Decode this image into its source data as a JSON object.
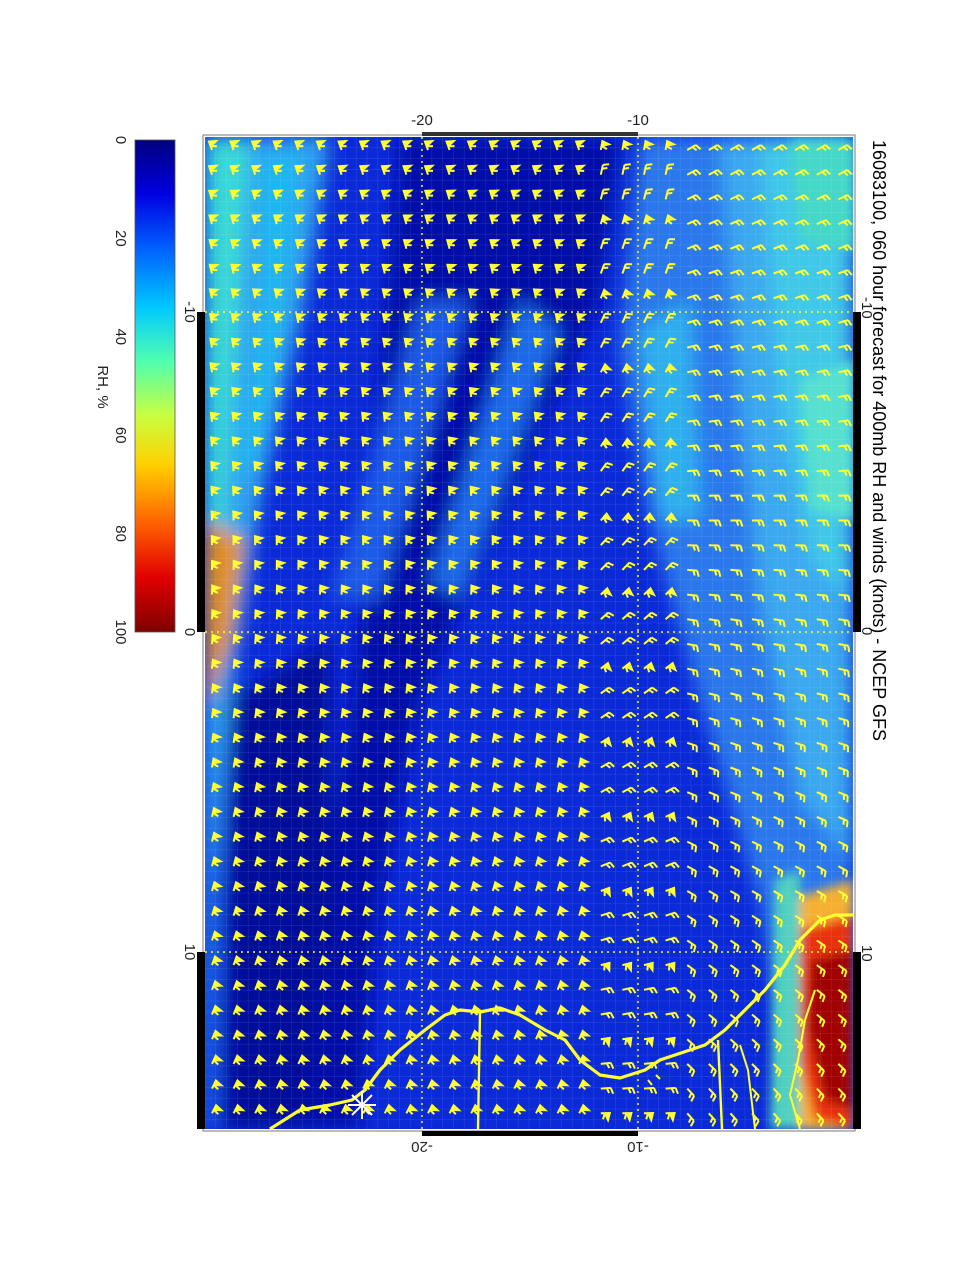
{
  "map": {
    "title": "16083100, 060 hour forecast for 400mb RH and winds (knots) - NCEP GFS",
    "variable": "RH",
    "orientation": "rotated 90 degrees clockwise",
    "colorbar": {
      "label": "RH, %",
      "ticks": [
        "0",
        "20",
        "40",
        "60",
        "80",
        "100"
      ],
      "range": [
        0,
        100
      ],
      "colormap": [
        "#00007f",
        "#0000e0",
        "#0060ff",
        "#00c8ff",
        "#50ffb0",
        "#c8ff40",
        "#ffd000",
        "#ff6000",
        "#e00000",
        "#7f0000"
      ]
    },
    "axis_top": {
      "ticks": [
        "-20",
        "-10"
      ]
    },
    "axis_left": {
      "ticks": [
        "-10",
        "0",
        "10"
      ]
    },
    "axis_right": {
      "ticks": [
        "-10",
        "0",
        "10"
      ]
    },
    "axis_bottom": {
      "ticks": [
        "-20",
        "-10"
      ]
    },
    "overlay_color": "#ffff33",
    "features": [
      "wind barbs",
      "coastlines",
      "country borders",
      "lat/lon grid"
    ]
  }
}
